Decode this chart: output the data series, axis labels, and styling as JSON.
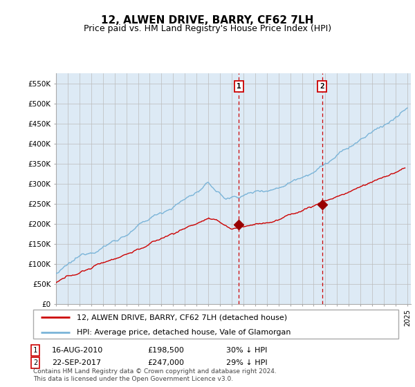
{
  "title": "12, ALWEN DRIVE, BARRY, CF62 7LH",
  "subtitle": "Price paid vs. HM Land Registry's House Price Index (HPI)",
  "ylim": [
    0,
    575000
  ],
  "yticks": [
    0,
    50000,
    100000,
    150000,
    200000,
    250000,
    300000,
    350000,
    400000,
    450000,
    500000,
    550000
  ],
  "ytick_labels": [
    "£0",
    "£50K",
    "£100K",
    "£150K",
    "£200K",
    "£250K",
    "£300K",
    "£350K",
    "£400K",
    "£450K",
    "£500K",
    "£550K"
  ],
  "hpi_color": "#7ab4d8",
  "price_color": "#cc0000",
  "marker_color": "#990000",
  "vline_color": "#cc0000",
  "bg_color": "#ddeaf5",
  "plot_bg": "#ffffff",
  "grid_color": "#bbbbbb",
  "transaction1": {
    "date": "16-AUG-2010",
    "price": 198500,
    "pct": "30%",
    "x": 2010.62
  },
  "transaction2": {
    "date": "22-SEP-2017",
    "price": 247000,
    "pct": "29%",
    "x": 2017.72
  },
  "legend_entries": [
    "12, ALWEN DRIVE, BARRY, CF62 7LH (detached house)",
    "HPI: Average price, detached house, Vale of Glamorgan"
  ],
  "footnote": "Contains HM Land Registry data © Crown copyright and database right 2024.\nThis data is licensed under the Open Government Licence v3.0.",
  "title_fontsize": 11,
  "subtitle_fontsize": 9
}
